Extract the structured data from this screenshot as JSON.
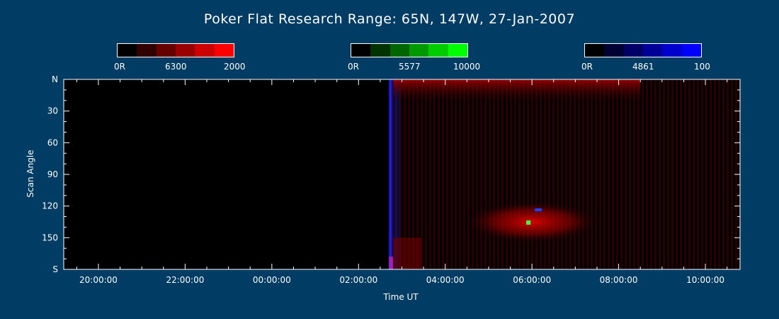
{
  "chart_data": {
    "type": "heatmap",
    "title": "Poker Flat Research Range: 65N, 147W, 27-Jan-2007",
    "xlabel": "Time UT",
    "ylabel": "Scan Angle",
    "x_ticks": [
      "20:00:00",
      "22:00:00",
      "00:00:00",
      "02:00:00",
      "04:00:00",
      "06:00:00",
      "08:00:00",
      "10:00:00"
    ],
    "y_ticks": [
      "N",
      "30",
      "60",
      "90",
      "120",
      "150",
      "S"
    ],
    "xlim_hours": [
      19.2,
      34.8
    ],
    "ylim": [
      0,
      180
    ],
    "data_start_hour": 26.7,
    "colorbars": [
      {
        "name": "6300",
        "min_label": "0R",
        "mid_label": "6300",
        "max_label": "2000",
        "colors": [
          "#000000",
          "#330000",
          "#660000",
          "#990000",
          "#cc0000",
          "#ff0000"
        ]
      },
      {
        "name": "5577",
        "min_label": "0R",
        "mid_label": "5577",
        "max_label": "10000",
        "colors": [
          "#000000",
          "#003300",
          "#006600",
          "#009900",
          "#00cc00",
          "#00ff00"
        ]
      },
      {
        "name": "4861",
        "min_label": "0R",
        "mid_label": "4861",
        "max_label": "100",
        "colors": [
          "#000000",
          "#000033",
          "#000066",
          "#000099",
          "#0000cc",
          "#0000ff"
        ]
      }
    ],
    "features": [
      {
        "description": "red aurora band",
        "hour_start": 26.8,
        "hour_end": 32.5,
        "angle_start": 0,
        "angle_end": 20
      },
      {
        "description": "red aurora patch",
        "hour_start": 28.5,
        "hour_end": 31.5,
        "angle_start": 120,
        "angle_end": 150
      },
      {
        "description": "green/blue spot",
        "hour": 30.0,
        "angle": 135
      }
    ]
  },
  "colors": {
    "background": "#003c64",
    "plot_background": "#000000",
    "axis": "#ffffff"
  }
}
